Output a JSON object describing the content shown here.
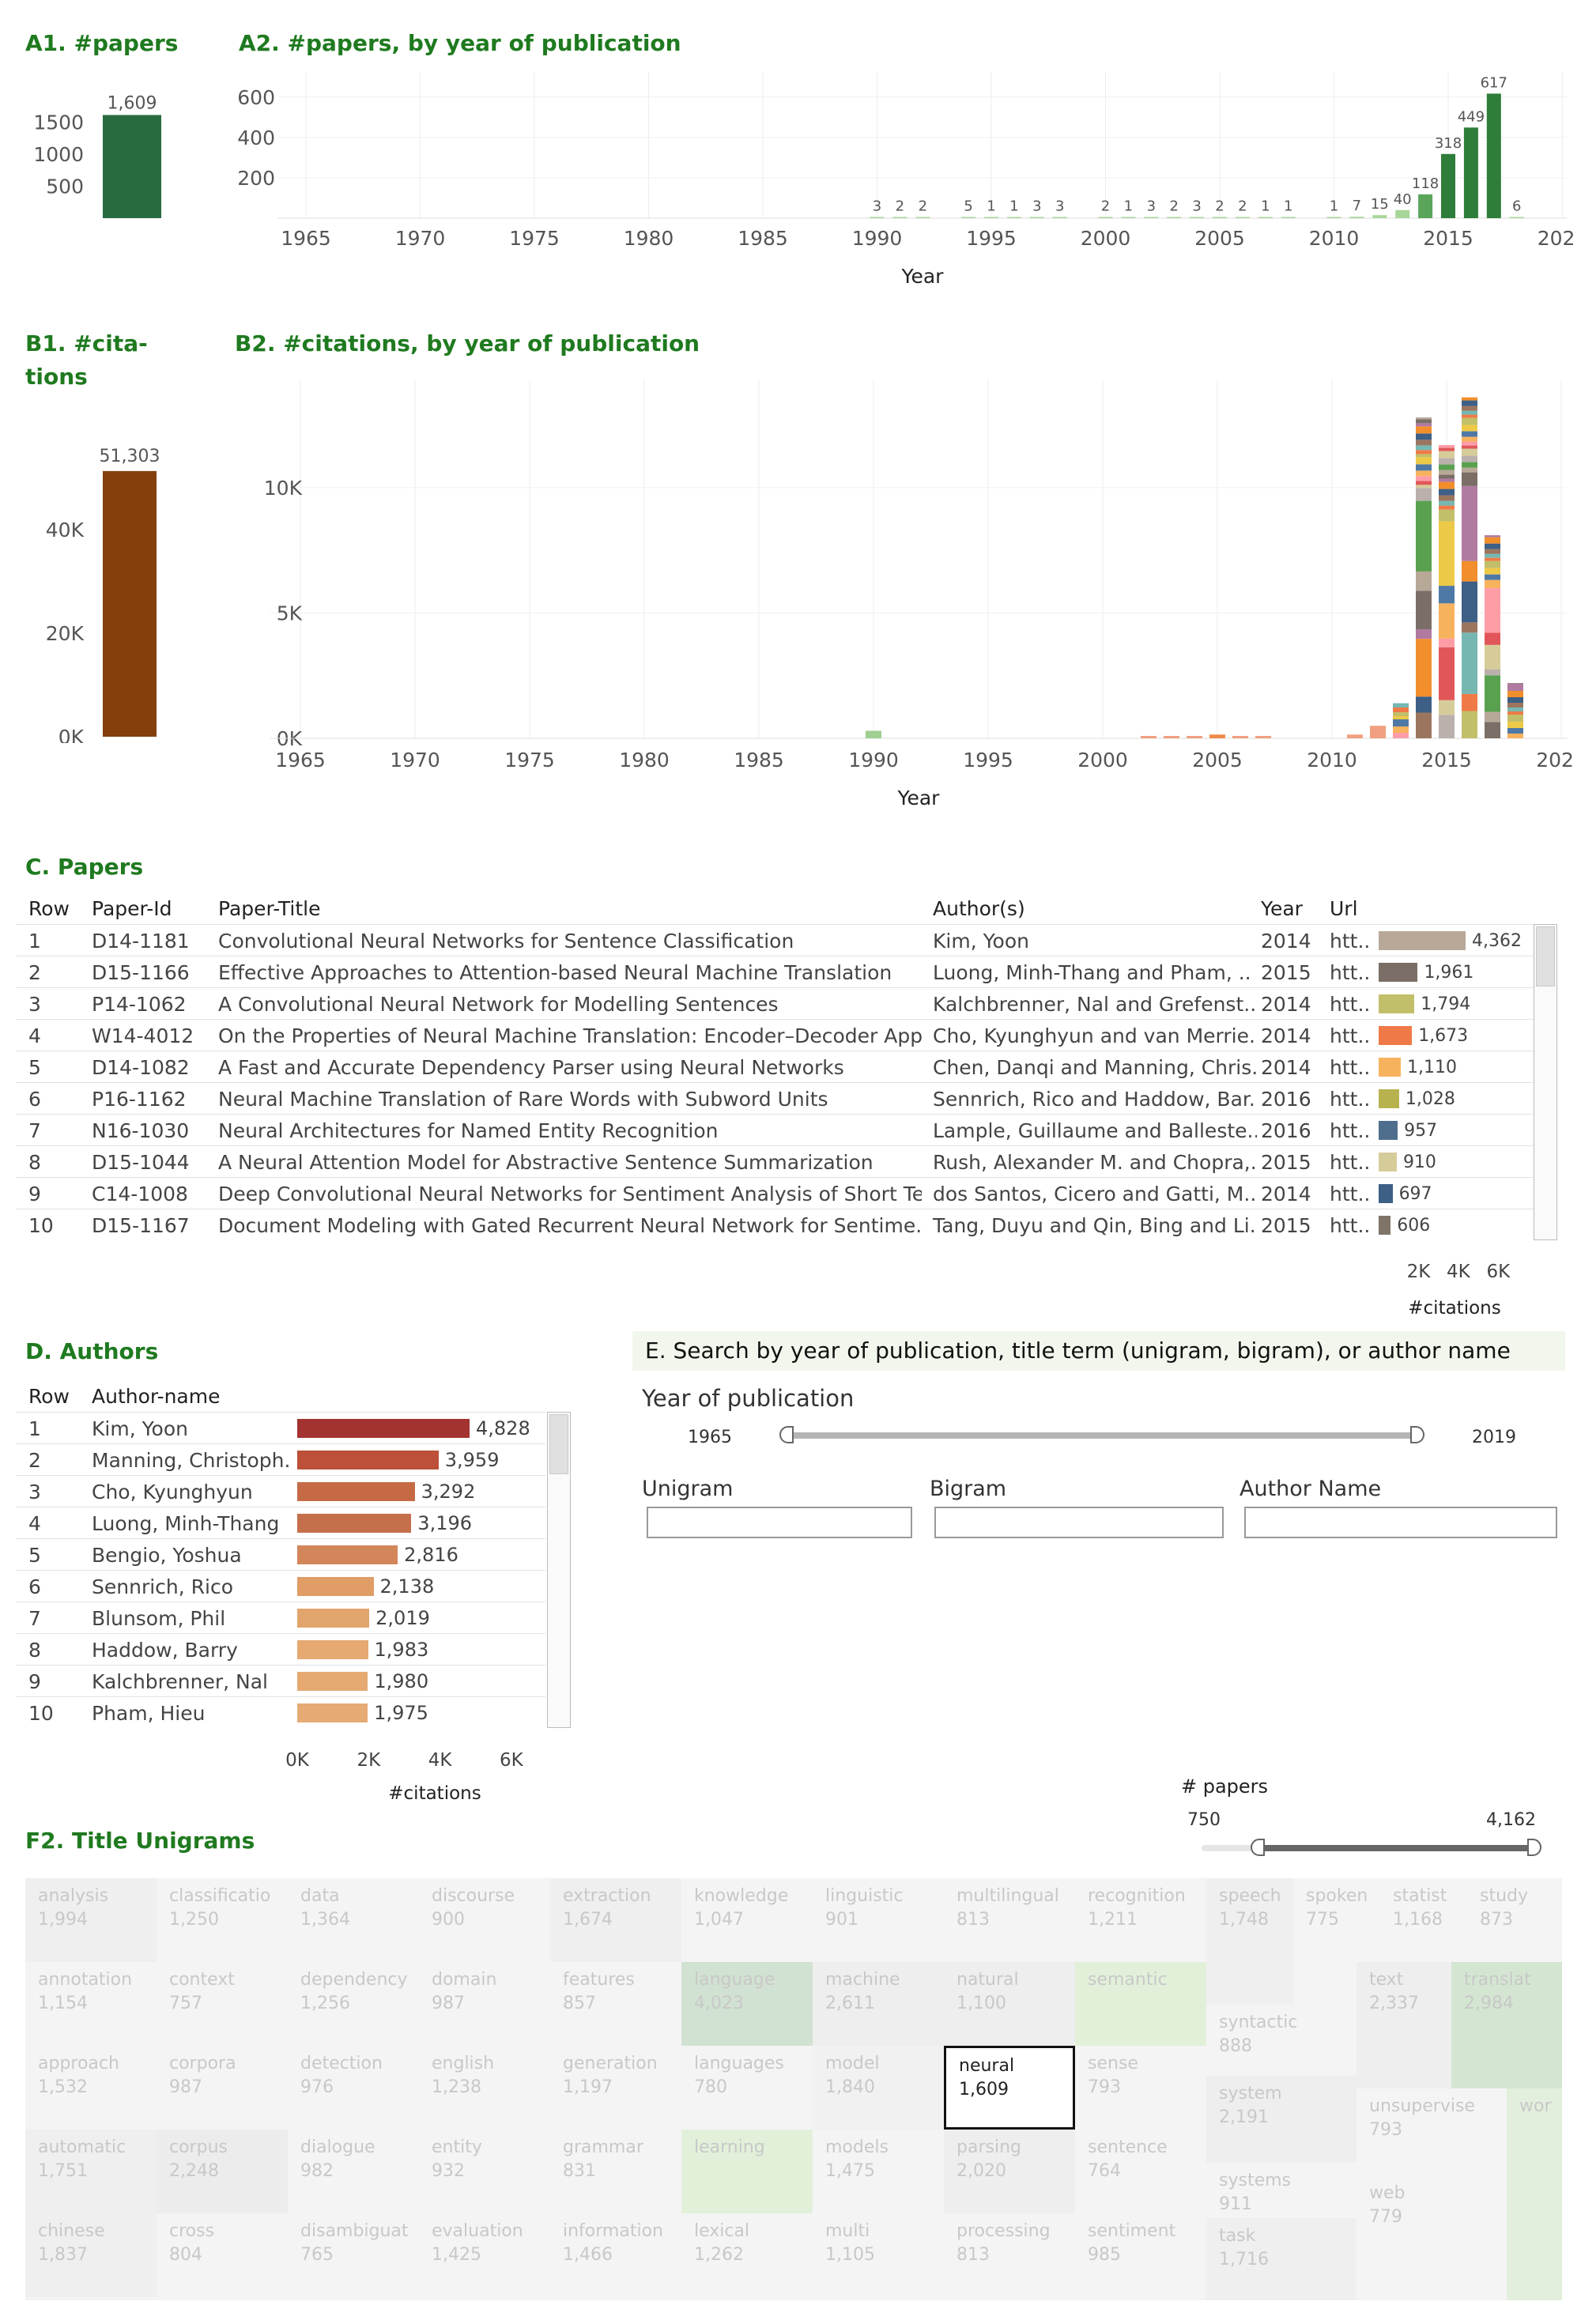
{
  "sections": {
    "a1": "A1. #papers",
    "a2": "A2. #papers, by year of publication",
    "b1_line1": "B1. #cita-",
    "b1_line2": "tions",
    "b2": "B2. #citations, by year of publication",
    "c": "C. Papers",
    "d": "D. Authors",
    "e": "E. Search by year of publication, title term (unigram, bigram), or  author name",
    "f2": "F2. Title Unigrams"
  },
  "chart_data": [
    {
      "id": "A1",
      "type": "bar",
      "title": "A1. #papers",
      "values": [
        1609
      ],
      "value_labels": [
        "1,609"
      ],
      "yticks": [
        "500",
        "1000",
        "1500"
      ],
      "ylim": [
        0,
        1800
      ],
      "color": "#276b3f"
    },
    {
      "id": "A2",
      "type": "bar",
      "title": "A2. #papers, by year of publication",
      "xlabel": "Year",
      "xticks": [
        "1965",
        "1970",
        "1975",
        "1980",
        "1985",
        "1990",
        "1995",
        "2000",
        "2005",
        "2010",
        "2015",
        "2020"
      ],
      "yticks": [
        "200",
        "400",
        "600"
      ],
      "ylim": [
        0,
        650
      ],
      "x": [
        1990,
        1991,
        1992,
        1994,
        1995,
        1996,
        1997,
        1998,
        2000,
        2001,
        2002,
        2003,
        2004,
        2005,
        2006,
        2007,
        2008,
        2010,
        2011,
        2012,
        2013,
        2014,
        2015,
        2016,
        2017,
        2018
      ],
      "values": [
        3,
        2,
        2,
        5,
        1,
        1,
        3,
        3,
        2,
        1,
        3,
        2,
        3,
        2,
        2,
        1,
        1,
        1,
        7,
        15,
        40,
        118,
        318,
        449,
        617,
        6
      ],
      "value_labels": [
        "3",
        "2",
        "2",
        "5",
        "1",
        "1",
        "3",
        "3",
        "2",
        "1",
        "3",
        "2",
        "3",
        "2",
        "2",
        "1",
        "1",
        "1",
        "7",
        "15",
        "40",
        "118",
        "318",
        "449",
        "617",
        "6"
      ]
    },
    {
      "id": "B1",
      "type": "bar",
      "title": "B1. #citations",
      "values": [
        51303
      ],
      "value_labels": [
        "51,303"
      ],
      "yticks": [
        "0K",
        "20K",
        "40K"
      ],
      "ylim": [
        0,
        58000
      ],
      "color": "#84400c"
    },
    {
      "id": "B2",
      "type": "bar",
      "title": "B2. #citations, by year of publication",
      "xlabel": "Year",
      "xticks": [
        "1965",
        "1970",
        "1975",
        "1980",
        "1985",
        "1990",
        "1995",
        "2000",
        "2005",
        "2010",
        "2015",
        "2020"
      ],
      "yticks": [
        "0K",
        "5K",
        "10K"
      ],
      "ylim": [
        0,
        14000
      ],
      "x": [
        1990,
        2002,
        2003,
        2004,
        2005,
        2006,
        2007,
        2011,
        2012,
        2013,
        2014,
        2015,
        2016,
        2017,
        2018
      ],
      "values": [
        300,
        60,
        50,
        60,
        150,
        80,
        60,
        150,
        500,
        1400,
        12800,
        11700,
        13600,
        8100,
        2200
      ]
    },
    {
      "id": "C",
      "type": "table",
      "title": "C. Papers",
      "columns": [
        "Row",
        "Paper-Id",
        "Paper-Title",
        "Author(s)",
        "Year",
        "Url"
      ],
      "bar_axis_label": "#citations",
      "bar_ticks": [
        "2K",
        "4K",
        "6K"
      ],
      "bar_max": 7000,
      "rows": [
        {
          "row": "1",
          "id": "D14-1181",
          "title": "Convolutional Neural Networks for Sentence Classification",
          "authors": "Kim, Yoon",
          "year": "2014",
          "url": "htt..",
          "citations": 4362,
          "label": "4,362",
          "color": "#b8a898"
        },
        {
          "row": "2",
          "id": "D15-1166",
          "title": "Effective Approaches to Attention-based Neural Machine Translation",
          "authors": "Luong, Minh-Thang and Pham, ..",
          "year": "2015",
          "url": "htt..",
          "citations": 1961,
          "label": "1,961",
          "color": "#7a6e66"
        },
        {
          "row": "3",
          "id": "P14-1062",
          "title": "A Convolutional Neural Network for Modelling Sentences",
          "authors": "Kalchbrenner, Nal and Grefenst..",
          "year": "2014",
          "url": "htt..",
          "citations": 1794,
          "label": "1,794",
          "color": "#c2bf6a"
        },
        {
          "row": "4",
          "id": "W14-4012",
          "title": "On the Properties of Neural Machine Translation: Encoder–Decoder App..",
          "authors": "Cho, Kyunghyun and van Merrie..",
          "year": "2014",
          "url": "htt..",
          "citations": 1673,
          "label": "1,673",
          "color": "#ef7a47"
        },
        {
          "row": "5",
          "id": "D14-1082",
          "title": "A Fast and Accurate Dependency Parser using Neural Networks",
          "authors": "Chen, Danqi and Manning, Chris..",
          "year": "2014",
          "url": "htt..",
          "citations": 1110,
          "label": "1,110",
          "color": "#f7b25e"
        },
        {
          "row": "6",
          "id": "P16-1162",
          "title": "Neural Machine Translation of Rare Words with Subword Units",
          "authors": "Sennrich, Rico and Haddow, Bar..",
          "year": "2016",
          "url": "htt..",
          "citations": 1028,
          "label": "1,028",
          "color": "#b8b24e"
        },
        {
          "row": "7",
          "id": "N16-1030",
          "title": "Neural Architectures for Named Entity Recognition",
          "authors": "Lample, Guillaume and Balleste..",
          "year": "2016",
          "url": "htt..",
          "citations": 957,
          "label": "957",
          "color": "#4f6e8e"
        },
        {
          "row": "8",
          "id": "D15-1044",
          "title": "A Neural Attention Model for Abstractive Sentence Summarization",
          "authors": "Rush, Alexander M. and Chopra,..",
          "year": "2015",
          "url": "htt..",
          "citations": 910,
          "label": "910",
          "color": "#d6cc9a"
        },
        {
          "row": "9",
          "id": "C14-1008",
          "title": "Deep Convolutional Neural Networks for Sentiment Analysis of Short Te..",
          "authors": "dos Santos, Cicero and Gatti, M..",
          "year": "2014",
          "url": "htt..",
          "citations": 697,
          "label": "697",
          "color": "#3e5f86"
        },
        {
          "row": "10",
          "id": "D15-1167",
          "title": "Document Modeling with Gated Recurrent Neural Network for Sentime..",
          "authors": "Tang, Duyu and Qin, Bing and Li..",
          "year": "2015",
          "url": "htt..",
          "citations": 606,
          "label": "606",
          "color": "#807468"
        }
      ]
    },
    {
      "id": "D",
      "type": "table",
      "title": "D. Authors",
      "columns": [
        "Row",
        "Author-name"
      ],
      "bar_axis_label": "#citations",
      "bar_ticks": [
        "0K",
        "2K",
        "4K",
        "6K"
      ],
      "bar_max": 7000,
      "rows": [
        {
          "row": "1",
          "name": "Kim, Yoon",
          "citations": 4828,
          "label": "4,828",
          "color": "#a23330"
        },
        {
          "row": "2",
          "name": "Manning, Christoph..",
          "citations": 3959,
          "label": "3,959",
          "color": "#bc5039"
        },
        {
          "row": "3",
          "name": "Cho, Kyunghyun",
          "citations": 3292,
          "label": "3,292",
          "color": "#c66a46"
        },
        {
          "row": "4",
          "name": "Luong, Minh-Thang",
          "citations": 3196,
          "label": "3,196",
          "color": "#c66f4b"
        },
        {
          "row": "5",
          "name": "Bengio, Yoshua",
          "citations": 2816,
          "label": "2,816",
          "color": "#d2865a"
        },
        {
          "row": "6",
          "name": "Sennrich, Rico",
          "citations": 2138,
          "label": "2,138",
          "color": "#e09d66"
        },
        {
          "row": "7",
          "name": "Blunsom, Phil",
          "citations": 2019,
          "label": "2,019",
          "color": "#e2a56c"
        },
        {
          "row": "8",
          "name": "Haddow, Barry",
          "citations": 1983,
          "label": "1,983",
          "color": "#e5a971"
        },
        {
          "row": "9",
          "name": "Kalchbrenner, Nal",
          "citations": 1980,
          "label": "1,980",
          "color": "#e5a971"
        },
        {
          "row": "10",
          "name": "Pham, Hieu",
          "citations": 1975,
          "label": "1,975",
          "color": "#e6ab74"
        }
      ]
    },
    {
      "id": "F2",
      "type": "heatmap",
      "title": "F2. Title Unigrams",
      "cells": [
        {
          "term": "analysis",
          "value": "1,994"
        },
        {
          "term": "classificatio",
          "value": "1,250"
        },
        {
          "term": "data",
          "value": "1,364"
        },
        {
          "term": "discourse",
          "value": "900"
        },
        {
          "term": "extraction",
          "value": "1,674"
        },
        {
          "term": "knowledge",
          "value": "1,047"
        },
        {
          "term": "linguistic",
          "value": "901"
        },
        {
          "term": "multilingual",
          "value": "813"
        },
        {
          "term": "recognition",
          "value": "1,211"
        },
        {
          "term": "speech",
          "value": "1,748"
        },
        {
          "term": "spoken",
          "value": "775"
        },
        {
          "term": "statist",
          "value": "1,168"
        },
        {
          "term": "study",
          "value": "873"
        },
        {
          "term": "annotation",
          "value": "1,154"
        },
        {
          "term": "context",
          "value": "757"
        },
        {
          "term": "dependency",
          "value": "1,256"
        },
        {
          "term": "domain",
          "value": "987"
        },
        {
          "term": "features",
          "value": "857"
        },
        {
          "term": "language",
          "value": "4,023"
        },
        {
          "term": "machine",
          "value": "2,611"
        },
        {
          "term": "natural",
          "value": "1,100"
        },
        {
          "term": "semantic",
          "value": ""
        },
        {
          "term": "syntactic",
          "value": "888"
        },
        {
          "term": "text",
          "value": "2,337"
        },
        {
          "term": "translat",
          "value": "2,984"
        },
        {
          "term": "approach",
          "value": "1,532"
        },
        {
          "term": "corpora",
          "value": "987"
        },
        {
          "term": "detection",
          "value": "976"
        },
        {
          "term": "english",
          "value": "1,238"
        },
        {
          "term": "generation",
          "value": "1,197"
        },
        {
          "term": "languages",
          "value": "780"
        },
        {
          "term": "model",
          "value": "1,840"
        },
        {
          "term": "neural",
          "value": "1,609"
        },
        {
          "term": "sense",
          "value": "793"
        },
        {
          "term": "system",
          "value": "2,191"
        },
        {
          "term": "automatic",
          "value": "1,751"
        },
        {
          "term": "corpus",
          "value": "2,248"
        },
        {
          "term": "dialogue",
          "value": "982"
        },
        {
          "term": "entity",
          "value": "932"
        },
        {
          "term": "grammar",
          "value": "831"
        },
        {
          "term": "learning",
          "value": ""
        },
        {
          "term": "models",
          "value": "1,475"
        },
        {
          "term": "parsing",
          "value": "2,020"
        },
        {
          "term": "sentence",
          "value": "764"
        },
        {
          "term": "systems",
          "value": "911"
        },
        {
          "term": "unsupervise",
          "value": "793"
        },
        {
          "term": "wor",
          "value": ""
        },
        {
          "term": "chinese",
          "value": "1,837"
        },
        {
          "term": "cross",
          "value": "804"
        },
        {
          "term": "disambiguat",
          "value": "765"
        },
        {
          "term": "evaluation",
          "value": "1,425"
        },
        {
          "term": "information",
          "value": "1,466"
        },
        {
          "term": "lexical",
          "value": "1,262"
        },
        {
          "term": "multi",
          "value": "1,105"
        },
        {
          "term": "processing",
          "value": "813"
        },
        {
          "term": "sentiment",
          "value": "985"
        },
        {
          "term": "task",
          "value": "1,716"
        },
        {
          "term": "web",
          "value": "779"
        }
      ]
    }
  ],
  "search": {
    "year_label": "Year of publication",
    "year_min": "1965",
    "year_max": "2019",
    "unigram_label": "Unigram",
    "bigram_label": "Bigram",
    "author_label": "Author Name",
    "unigram_value": "",
    "bigram_value": "",
    "author_value": ""
  },
  "papers_filter": {
    "label": "# papers",
    "min": "750",
    "max": "4,162"
  }
}
